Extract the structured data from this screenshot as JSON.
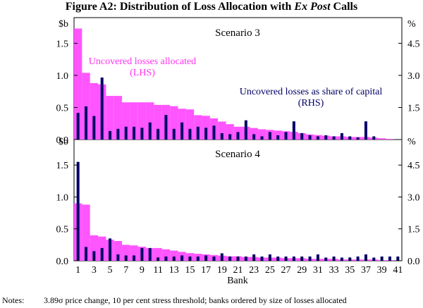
{
  "figure": {
    "title_prefix": "Figure A2: Distribution of Loss Allocation with ",
    "title_italic": "Ex Post",
    "title_suffix": " Calls",
    "notes_label": "Notes:",
    "notes_text": "3.89σ price change, 10 per cent stress threshold; banks ordered by size of losses allocated",
    "x_axis_label": "Bank"
  },
  "colors": {
    "bar_pink": "#ff55ff",
    "bar_navy": "#000066",
    "ann_pink": "#ff33ee",
    "ann_navy": "#000066"
  },
  "chart_data": [
    {
      "type": "bar",
      "title": "Scenario 3",
      "left_unit": "$b",
      "right_unit": "%",
      "left_ticks": [
        "0.0",
        "0.5",
        "1.0",
        "1.5"
      ],
      "left_tick_values": [
        0,
        0.5,
        1.0,
        1.5
      ],
      "right_ticks": [
        "",
        "1.5",
        "3.0",
        "4.5"
      ],
      "right_tick_values": [
        0,
        1.5,
        3.0,
        4.5
      ],
      "ylim_left": [
        0,
        1.9
      ],
      "ylim_right": [
        0,
        5.7
      ],
      "annotations": {
        "pink_line1": "Uncovered losses allocated",
        "pink_line2": "(LHS)",
        "navy_line1": "Uncovered losses as share of capital",
        "navy_line2": "(RHS)"
      },
      "series": [
        {
          "name": "Uncovered losses allocated (LHS, $b)",
          "axis": "left",
          "values": [
            1.73,
            1.04,
            0.88,
            0.86,
            0.68,
            0.68,
            0.58,
            0.58,
            0.58,
            0.58,
            0.54,
            0.54,
            0.52,
            0.48,
            0.47,
            0.38,
            0.37,
            0.33,
            0.28,
            0.24,
            0.2,
            0.2,
            0.18,
            0.16,
            0.15,
            0.14,
            0.13,
            0.12,
            0.1,
            0.08,
            0.07,
            0.06,
            0.05,
            0.05,
            0.04,
            0.04,
            0.04,
            0.03,
            0.02,
            0.01,
            0.0
          ]
        },
        {
          "name": "Uncovered losses as share of capital (RHS, %)",
          "axis": "right",
          "values": [
            1.25,
            1.55,
            1.1,
            2.9,
            0.4,
            0.5,
            0.6,
            0.6,
            0.55,
            0.8,
            0.5,
            1.15,
            0.5,
            0.8,
            0.5,
            0.6,
            0.55,
            0.65,
            0.3,
            0.25,
            0.35,
            0.9,
            0.25,
            0.15,
            0.35,
            0.2,
            0.35,
            0.85,
            0.3,
            0.2,
            0.15,
            0.2,
            0.15,
            0.3,
            0.15,
            0.1,
            0.85,
            0.15,
            0.0,
            0.0,
            0.0
          ]
        }
      ]
    },
    {
      "type": "bar",
      "title": "Scenario 4",
      "left_unit": "$b",
      "right_unit": "%",
      "left_ticks": [
        "0.0",
        "0.5",
        "1.0",
        "1.5"
      ],
      "left_tick_values": [
        0,
        0.5,
        1.0,
        1.5
      ],
      "right_ticks": [
        "0.0",
        "1.5",
        "3.0",
        "4.5"
      ],
      "right_tick_values": [
        0,
        1.5,
        3.0,
        4.5
      ],
      "ylim_left": [
        0,
        1.9
      ],
      "ylim_right": [
        0,
        5.7
      ],
      "series": [
        {
          "name": "Uncovered losses allocated (LHS, $b)",
          "axis": "left",
          "values": [
            0.9,
            0.88,
            0.4,
            0.38,
            0.33,
            0.31,
            0.25,
            0.24,
            0.22,
            0.2,
            0.2,
            0.18,
            0.16,
            0.14,
            0.12,
            0.11,
            0.1,
            0.09,
            0.08,
            0.07,
            0.07,
            0.06,
            0.06,
            0.05,
            0.05,
            0.05,
            0.04,
            0.04,
            0.04,
            0.03,
            0.03,
            0.03,
            0.03,
            0.02,
            0.02,
            0.02,
            0.02,
            0.02,
            0.01,
            0.01,
            0.0
          ]
        },
        {
          "name": "Uncovered losses as share of capital (RHS, %)",
          "axis": "right",
          "values": [
            4.65,
            0.65,
            0.45,
            0.6,
            1.05,
            0.3,
            0.25,
            0.25,
            0.6,
            0.6,
            0.15,
            0.2,
            0.2,
            0.25,
            0.2,
            0.2,
            0.25,
            0.2,
            0.35,
            0.2,
            0.2,
            0.2,
            0.3,
            0.2,
            0.3,
            0.2,
            0.2,
            0.2,
            0.2,
            0.2,
            0.3,
            0.15,
            0.2,
            0.15,
            0.15,
            0.2,
            0.3,
            0.15,
            0.2,
            0.2,
            0.2
          ]
        }
      ]
    }
  ],
  "x_ticks": [
    "1",
    "3",
    "5",
    "7",
    "9",
    "11",
    "13",
    "15",
    "17",
    "19",
    "21",
    "23",
    "25",
    "27",
    "29",
    "31",
    "33",
    "35",
    "37",
    "39",
    "41"
  ]
}
